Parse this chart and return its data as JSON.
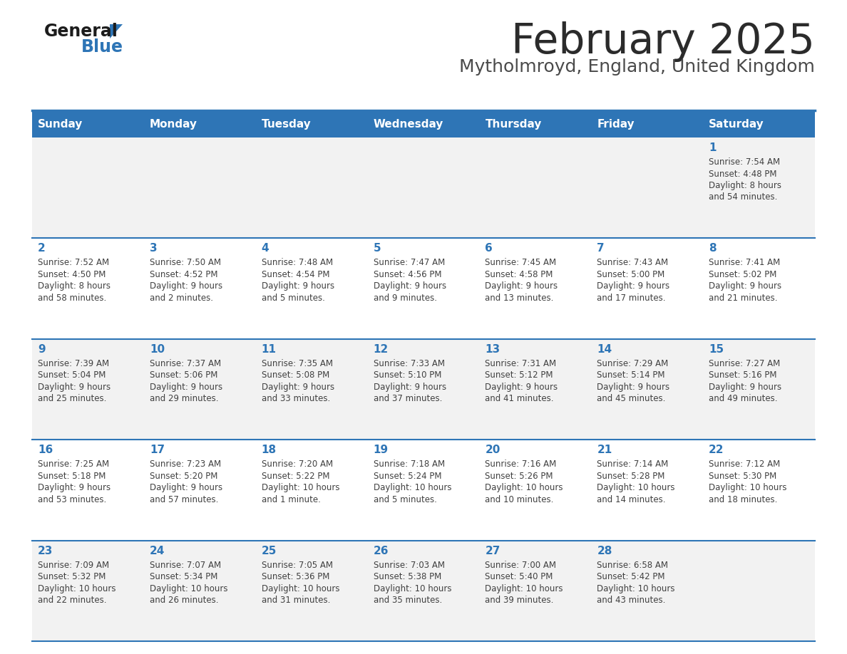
{
  "title": "February 2025",
  "subtitle": "Mytholmroyd, England, United Kingdom",
  "days_of_week": [
    "Sunday",
    "Monday",
    "Tuesday",
    "Wednesday",
    "Thursday",
    "Friday",
    "Saturday"
  ],
  "header_bg": "#2E75B6",
  "header_text": "#FFFFFF",
  "row_bg": [
    "#F2F2F2",
    "#FFFFFF",
    "#F2F2F2",
    "#FFFFFF",
    "#F2F2F2"
  ],
  "border_color": "#2E75B6",
  "day_number_color": "#2E75B6",
  "cell_text_color": "#404040",
  "title_color": "#2B2B2B",
  "subtitle_color": "#4A4A4A",
  "calendar_data": [
    [
      {
        "day": null,
        "sunrise": null,
        "sunset": null,
        "daylight": null
      },
      {
        "day": null,
        "sunrise": null,
        "sunset": null,
        "daylight": null
      },
      {
        "day": null,
        "sunrise": null,
        "sunset": null,
        "daylight": null
      },
      {
        "day": null,
        "sunrise": null,
        "sunset": null,
        "daylight": null
      },
      {
        "day": null,
        "sunrise": null,
        "sunset": null,
        "daylight": null
      },
      {
        "day": null,
        "sunrise": null,
        "sunset": null,
        "daylight": null
      },
      {
        "day": 1,
        "sunrise": "7:54 AM",
        "sunset": "4:48 PM",
        "daylight": "8 hours\nand 54 minutes."
      }
    ],
    [
      {
        "day": 2,
        "sunrise": "7:52 AM",
        "sunset": "4:50 PM",
        "daylight": "8 hours\nand 58 minutes."
      },
      {
        "day": 3,
        "sunrise": "7:50 AM",
        "sunset": "4:52 PM",
        "daylight": "9 hours\nand 2 minutes."
      },
      {
        "day": 4,
        "sunrise": "7:48 AM",
        "sunset": "4:54 PM",
        "daylight": "9 hours\nand 5 minutes."
      },
      {
        "day": 5,
        "sunrise": "7:47 AM",
        "sunset": "4:56 PM",
        "daylight": "9 hours\nand 9 minutes."
      },
      {
        "day": 6,
        "sunrise": "7:45 AM",
        "sunset": "4:58 PM",
        "daylight": "9 hours\nand 13 minutes."
      },
      {
        "day": 7,
        "sunrise": "7:43 AM",
        "sunset": "5:00 PM",
        "daylight": "9 hours\nand 17 minutes."
      },
      {
        "day": 8,
        "sunrise": "7:41 AM",
        "sunset": "5:02 PM",
        "daylight": "9 hours\nand 21 minutes."
      }
    ],
    [
      {
        "day": 9,
        "sunrise": "7:39 AM",
        "sunset": "5:04 PM",
        "daylight": "9 hours\nand 25 minutes."
      },
      {
        "day": 10,
        "sunrise": "7:37 AM",
        "sunset": "5:06 PM",
        "daylight": "9 hours\nand 29 minutes."
      },
      {
        "day": 11,
        "sunrise": "7:35 AM",
        "sunset": "5:08 PM",
        "daylight": "9 hours\nand 33 minutes."
      },
      {
        "day": 12,
        "sunrise": "7:33 AM",
        "sunset": "5:10 PM",
        "daylight": "9 hours\nand 37 minutes."
      },
      {
        "day": 13,
        "sunrise": "7:31 AM",
        "sunset": "5:12 PM",
        "daylight": "9 hours\nand 41 minutes."
      },
      {
        "day": 14,
        "sunrise": "7:29 AM",
        "sunset": "5:14 PM",
        "daylight": "9 hours\nand 45 minutes."
      },
      {
        "day": 15,
        "sunrise": "7:27 AM",
        "sunset": "5:16 PM",
        "daylight": "9 hours\nand 49 minutes."
      }
    ],
    [
      {
        "day": 16,
        "sunrise": "7:25 AM",
        "sunset": "5:18 PM",
        "daylight": "9 hours\nand 53 minutes."
      },
      {
        "day": 17,
        "sunrise": "7:23 AM",
        "sunset": "5:20 PM",
        "daylight": "9 hours\nand 57 minutes."
      },
      {
        "day": 18,
        "sunrise": "7:20 AM",
        "sunset": "5:22 PM",
        "daylight": "10 hours\nand 1 minute."
      },
      {
        "day": 19,
        "sunrise": "7:18 AM",
        "sunset": "5:24 PM",
        "daylight": "10 hours\nand 5 minutes."
      },
      {
        "day": 20,
        "sunrise": "7:16 AM",
        "sunset": "5:26 PM",
        "daylight": "10 hours\nand 10 minutes."
      },
      {
        "day": 21,
        "sunrise": "7:14 AM",
        "sunset": "5:28 PM",
        "daylight": "10 hours\nand 14 minutes."
      },
      {
        "day": 22,
        "sunrise": "7:12 AM",
        "sunset": "5:30 PM",
        "daylight": "10 hours\nand 18 minutes."
      }
    ],
    [
      {
        "day": 23,
        "sunrise": "7:09 AM",
        "sunset": "5:32 PM",
        "daylight": "10 hours\nand 22 minutes."
      },
      {
        "day": 24,
        "sunrise": "7:07 AM",
        "sunset": "5:34 PM",
        "daylight": "10 hours\nand 26 minutes."
      },
      {
        "day": 25,
        "sunrise": "7:05 AM",
        "sunset": "5:36 PM",
        "daylight": "10 hours\nand 31 minutes."
      },
      {
        "day": 26,
        "sunrise": "7:03 AM",
        "sunset": "5:38 PM",
        "daylight": "10 hours\nand 35 minutes."
      },
      {
        "day": 27,
        "sunrise": "7:00 AM",
        "sunset": "5:40 PM",
        "daylight": "10 hours\nand 39 minutes."
      },
      {
        "day": 28,
        "sunrise": "6:58 AM",
        "sunset": "5:42 PM",
        "daylight": "10 hours\nand 43 minutes."
      },
      {
        "day": null,
        "sunrise": null,
        "sunset": null,
        "daylight": null
      }
    ]
  ]
}
